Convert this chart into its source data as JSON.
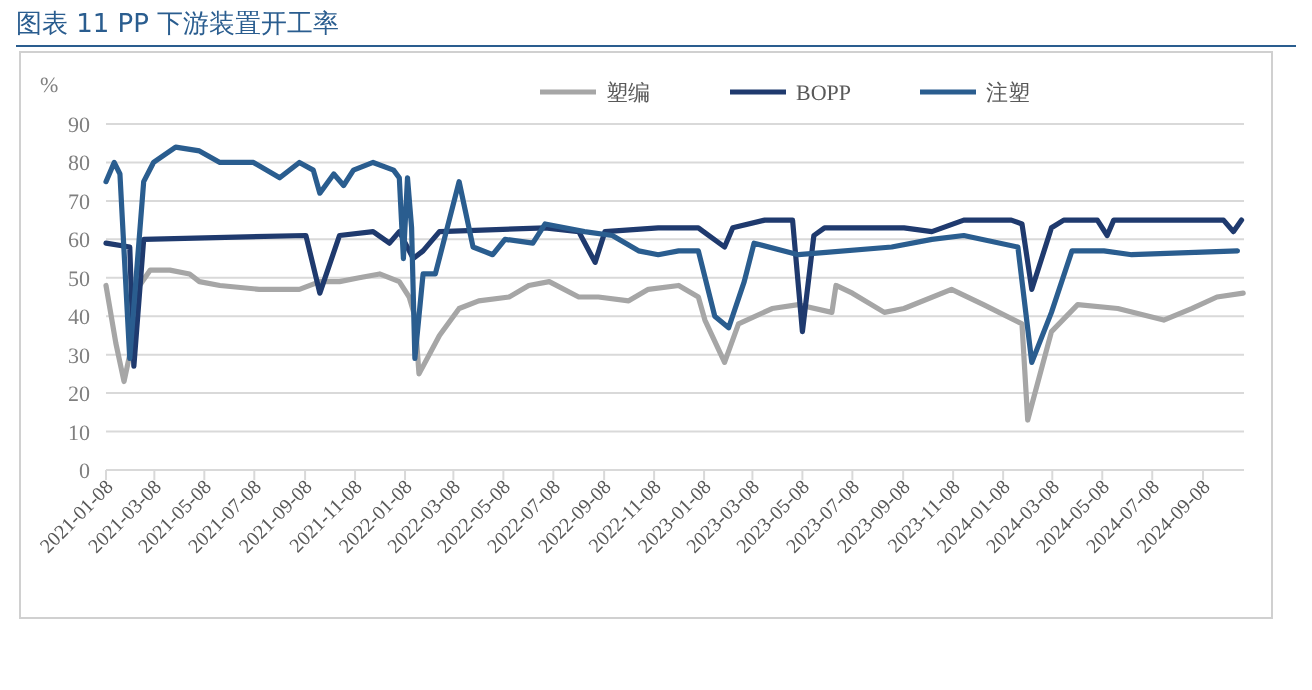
{
  "chart_data": {
    "type": "line",
    "title": "图表 11  PP 下游装置开工率",
    "ylabel": "%",
    "xlim": [
      "2021-01-08",
      "2024-10-28"
    ],
    "ylim": [
      0,
      90
    ],
    "yticks": [
      0,
      10,
      20,
      30,
      40,
      50,
      60,
      70,
      80,
      90
    ],
    "xticks": [
      "2021-01-08",
      "2021-03-08",
      "2021-05-08",
      "2021-07-08",
      "2021-09-08",
      "2021-11-08",
      "2022-01-08",
      "2022-03-08",
      "2022-05-08",
      "2022-07-08",
      "2022-09-08",
      "2022-11-08",
      "2023-01-08",
      "2023-03-08",
      "2023-05-08",
      "2023-07-08",
      "2023-09-08",
      "2023-11-08",
      "2024-01-08",
      "2024-03-08",
      "2024-05-08",
      "2024-07-08",
      "2024-09-08"
    ],
    "grid": "y",
    "legend": "top right",
    "marker": "none",
    "line_style": "solid",
    "series": [
      {
        "name": "塑编",
        "color": "#a6a6a6",
        "x": [
          "2021-01-08",
          "2021-01-20",
          "2021-01-30",
          "2021-02-06",
          "2021-02-18",
          "2021-03-03",
          "2021-03-27",
          "2021-04-20",
          "2021-05-02",
          "2021-05-27",
          "2021-07-14",
          "2021-09-01",
          "2021-09-26",
          "2021-10-20",
          "2021-11-13",
          "2021-12-08",
          "2022-01-01",
          "2022-01-13",
          "2022-01-20",
          "2022-01-25",
          "2022-02-19",
          "2022-03-15",
          "2022-04-08",
          "2022-05-15",
          "2022-06-08",
          "2022-07-03",
          "2022-08-08",
          "2022-09-01",
          "2022-10-08",
          "2022-11-01",
          "2022-12-08",
          "2023-01-01",
          "2023-01-09",
          "2023-02-02",
          "2023-02-19",
          "2023-04-01",
          "2023-05-03",
          "2023-06-13",
          "2023-06-18",
          "2023-07-08",
          "2023-08-16",
          "2023-09-09",
          "2023-11-06",
          "2023-12-15",
          "2024-01-31",
          "2024-02-07",
          "2024-03-07",
          "2024-04-08",
          "2024-05-27",
          "2024-07-22",
          "2024-08-25",
          "2024-09-25",
          "2024-10-27"
        ],
        "values": [
          48,
          33,
          23,
          30,
          48,
          52,
          52,
          51,
          49,
          48,
          47,
          47,
          49,
          49,
          50,
          51,
          49,
          45,
          40,
          25,
          35,
          42,
          44,
          45,
          48,
          49,
          45,
          45,
          44,
          47,
          48,
          45,
          39,
          28,
          38,
          42,
          43,
          41,
          48,
          46,
          41,
          42,
          47,
          43,
          38,
          13,
          36,
          43,
          42,
          39,
          42,
          45,
          46
        ]
      },
      {
        "name": "BOPP",
        "color": "#1f3a6e",
        "x": [
          "2021-01-08",
          "2021-02-06",
          "2021-02-11",
          "2021-02-23",
          "2021-09-09",
          "2021-09-26",
          "2021-10-20",
          "2021-11-30",
          "2021-12-20",
          "2022-01-01",
          "2022-01-18",
          "2022-01-30",
          "2022-02-19",
          "2022-06-28",
          "2022-08-08",
          "2022-08-28",
          "2022-09-09",
          "2022-11-13",
          "2023-01-01",
          "2023-02-02",
          "2023-02-12",
          "2023-03-23",
          "2023-04-26",
          "2023-05-08",
          "2023-05-22",
          "2023-06-04",
          "2023-09-09",
          "2023-10-13",
          "2023-11-21",
          "2024-01-18",
          "2024-01-31",
          "2024-02-12",
          "2024-03-07",
          "2024-03-22",
          "2024-05-02",
          "2024-05-14",
          "2024-05-22",
          "2024-10-03",
          "2024-10-15",
          "2024-10-25"
        ],
        "values": [
          59,
          58,
          27,
          60,
          61,
          46,
          61,
          62,
          59,
          62,
          55,
          57,
          62,
          63,
          62,
          54,
          62,
          63,
          63,
          58,
          63,
          65,
          65,
          36,
          61,
          63,
          63,
          62,
          65,
          65,
          64,
          47,
          63,
          65,
          65,
          61,
          65,
          65,
          62,
          65
        ]
      },
      {
        "name": "注塑",
        "color": "#2a5d8f",
        "x": [
          "2021-01-08",
          "2021-01-18",
          "2021-01-25",
          "2021-02-06",
          "2021-02-23",
          "2021-03-07",
          "2021-04-03",
          "2021-05-02",
          "2021-05-27",
          "2021-07-07",
          "2021-08-08",
          "2021-09-01",
          "2021-09-18",
          "2021-09-26",
          "2021-10-13",
          "2021-10-25",
          "2021-11-06",
          "2021-11-30",
          "2021-12-25",
          "2022-01-01",
          "2022-01-06",
          "2022-01-11",
          "2022-01-16",
          "2022-01-20",
          "2022-01-30",
          "2022-02-14",
          "2022-03-15",
          "2022-04-01",
          "2022-04-25",
          "2022-05-10",
          "2022-06-13",
          "2022-06-28",
          "2022-08-15",
          "2022-09-18",
          "2022-10-20",
          "2022-11-13",
          "2022-12-08",
          "2023-01-01",
          "2023-01-21",
          "2023-02-07",
          "2023-02-26",
          "2023-03-10",
          "2023-05-03",
          "2023-08-25",
          "2023-10-13",
          "2023-11-21",
          "2024-01-26",
          "2024-02-12",
          "2024-03-07",
          "2024-04-01",
          "2024-05-10",
          "2024-06-13",
          "2024-10-20"
        ],
        "values": [
          75,
          80,
          77,
          29,
          75,
          80,
          84,
          83,
          80,
          80,
          76,
          80,
          78,
          72,
          77,
          74,
          78,
          80,
          78,
          76,
          55,
          76,
          63,
          29,
          51,
          51,
          75,
          58,
          56,
          60,
          59,
          64,
          62,
          61,
          57,
          56,
          57,
          57,
          40,
          37,
          49,
          59,
          56,
          58,
          60,
          61,
          58,
          28,
          41,
          57,
          57,
          56,
          57
        ]
      }
    ]
  }
}
